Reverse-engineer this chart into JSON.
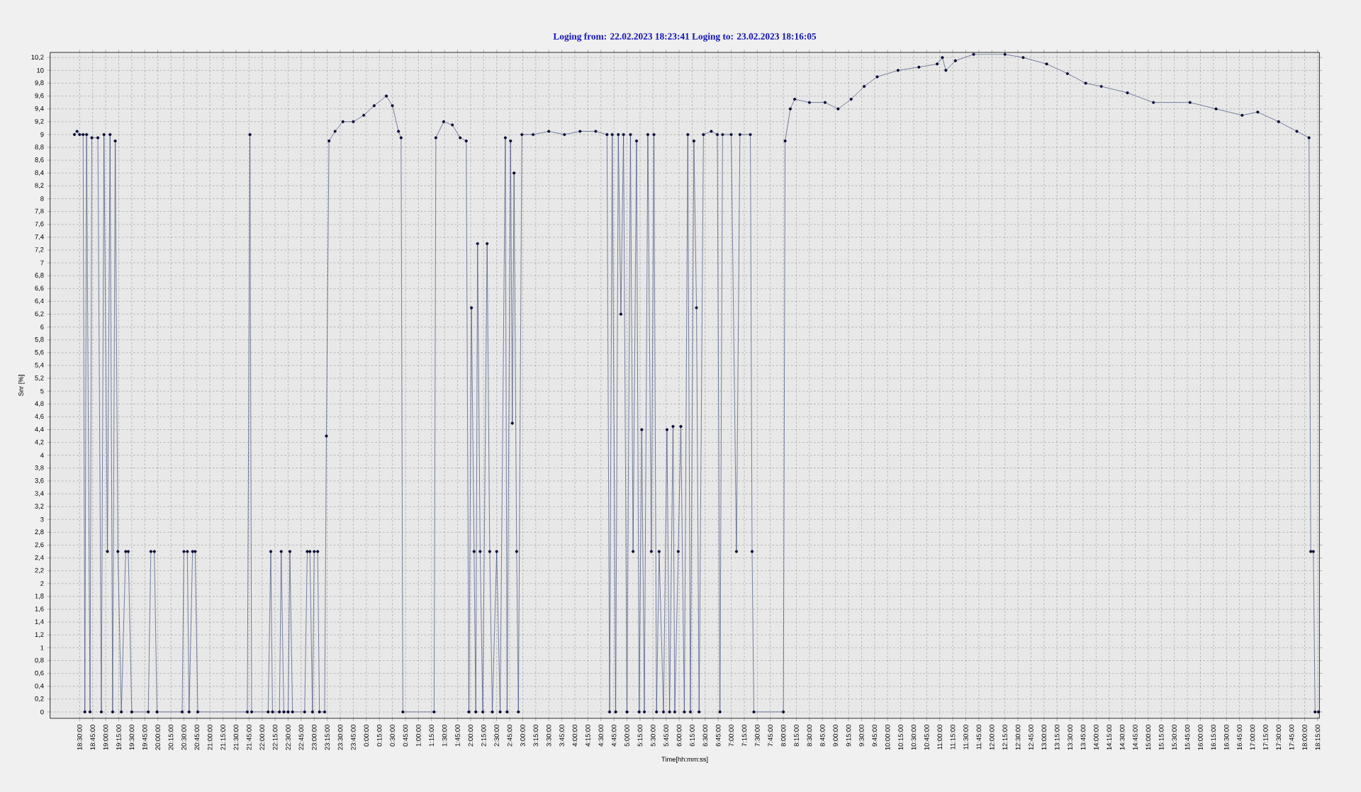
{
  "chart_data": {
    "type": "line",
    "title": "Loging from: 22.02.2023 18:23:41   Loging to: 23.02.2023 18:16:05",
    "xlabel": "Time[hh:mm:ss]",
    "ylabel": "Snr [%]",
    "grid": true,
    "marker": "circle",
    "line_style": "solid",
    "xlim": [
      "2023-02-22T17:56",
      "2023-02-23T18:17"
    ],
    "ylim": [
      -0.1,
      10.28
    ],
    "xticks": [
      {
        "value": "2023-02-22T18:30",
        "label": "18:30:00"
      },
      {
        "value": "2023-02-22T18:45",
        "label": "18:45:00"
      },
      {
        "value": "2023-02-22T19:00",
        "label": "19:00:00"
      },
      {
        "value": "2023-02-22T19:15",
        "label": "19:15:00"
      },
      {
        "value": "2023-02-22T19:30",
        "label": "19:30:00"
      },
      {
        "value": "2023-02-22T19:45",
        "label": "19:45:00"
      },
      {
        "value": "2023-02-22T20:00",
        "label": "20:00:00"
      },
      {
        "value": "2023-02-22T20:15",
        "label": "20:15:00"
      },
      {
        "value": "2023-02-22T20:30",
        "label": "20:30:00"
      },
      {
        "value": "2023-02-22T20:45",
        "label": "20:45:00"
      },
      {
        "value": "2023-02-22T21:00",
        "label": "21:00:00"
      },
      {
        "value": "2023-02-22T21:15",
        "label": "21:15:00"
      },
      {
        "value": "2023-02-22T21:30",
        "label": "21:30:00"
      },
      {
        "value": "2023-02-22T21:45",
        "label": "21:45:00"
      },
      {
        "value": "2023-02-22T22:00",
        "label": "22:00:00"
      },
      {
        "value": "2023-02-22T22:15",
        "label": "22:15:00"
      },
      {
        "value": "2023-02-22T22:30",
        "label": "22:30:00"
      },
      {
        "value": "2023-02-22T22:45",
        "label": "22:45:00"
      },
      {
        "value": "2023-02-22T23:00",
        "label": "23:00:00"
      },
      {
        "value": "2023-02-22T23:15",
        "label": "23:15:00"
      },
      {
        "value": "2023-02-22T23:30",
        "label": "23:30:00"
      },
      {
        "value": "2023-02-22T23:45",
        "label": "23:45:00"
      },
      {
        "value": "2023-02-23T00:00",
        "label": "0:00:00"
      },
      {
        "value": "2023-02-23T00:15",
        "label": "0:15:00"
      },
      {
        "value": "2023-02-23T00:30",
        "label": "0:30:00"
      },
      {
        "value": "2023-02-23T00:45",
        "label": "0:45:00"
      },
      {
        "value": "2023-02-23T01:00",
        "label": "1:00:00"
      },
      {
        "value": "2023-02-23T01:15",
        "label": "1:15:00"
      },
      {
        "value": "2023-02-23T01:30",
        "label": "1:30:00"
      },
      {
        "value": "2023-02-23T01:45",
        "label": "1:45:00"
      },
      {
        "value": "2023-02-23T02:00",
        "label": "2:00:00"
      },
      {
        "value": "2023-02-23T02:15",
        "label": "2:15:00"
      },
      {
        "value": "2023-02-23T02:30",
        "label": "2:30:00"
      },
      {
        "value": "2023-02-23T02:45",
        "label": "2:45:00"
      },
      {
        "value": "2023-02-23T03:00",
        "label": "3:00:00"
      },
      {
        "value": "2023-02-23T03:15",
        "label": "3:15:00"
      },
      {
        "value": "2023-02-23T03:30",
        "label": "3:30:00"
      },
      {
        "value": "2023-02-23T03:45",
        "label": "3:45:00"
      },
      {
        "value": "2023-02-23T04:00",
        "label": "4:00:00"
      },
      {
        "value": "2023-02-23T04:15",
        "label": "4:15:00"
      },
      {
        "value": "2023-02-23T04:30",
        "label": "4:30:00"
      },
      {
        "value": "2023-02-23T04:45",
        "label": "4:45:00"
      },
      {
        "value": "2023-02-23T05:00",
        "label": "5:00:00"
      },
      {
        "value": "2023-02-23T05:15",
        "label": "5:15:00"
      },
      {
        "value": "2023-02-23T05:30",
        "label": "5:30:00"
      },
      {
        "value": "2023-02-23T05:45",
        "label": "5:45:00"
      },
      {
        "value": "2023-02-23T06:00",
        "label": "6:00:00"
      },
      {
        "value": "2023-02-23T06:15",
        "label": "6:15:00"
      },
      {
        "value": "2023-02-23T06:30",
        "label": "6:30:00"
      },
      {
        "value": "2023-02-23T06:45",
        "label": "6:45:00"
      },
      {
        "value": "2023-02-23T07:00",
        "label": "7:00:00"
      },
      {
        "value": "2023-02-23T07:15",
        "label": "7:15:00"
      },
      {
        "value": "2023-02-23T07:30",
        "label": "7:30:00"
      },
      {
        "value": "2023-02-23T07:45",
        "label": "7:45:00"
      },
      {
        "value": "2023-02-23T08:00",
        "label": "8:00:00"
      },
      {
        "value": "2023-02-23T08:15",
        "label": "8:15:00"
      },
      {
        "value": "2023-02-23T08:30",
        "label": "8:30:00"
      },
      {
        "value": "2023-02-23T08:45",
        "label": "8:45:00"
      },
      {
        "value": "2023-02-23T09:00",
        "label": "9:00:00"
      },
      {
        "value": "2023-02-23T09:15",
        "label": "9:15:00"
      },
      {
        "value": "2023-02-23T09:30",
        "label": "9:30:00"
      },
      {
        "value": "2023-02-23T09:45",
        "label": "9:45:00"
      },
      {
        "value": "2023-02-23T10:00",
        "label": "10:00:00"
      },
      {
        "value": "2023-02-23T10:15",
        "label": "10:15:00"
      },
      {
        "value": "2023-02-23T10:30",
        "label": "10:30:00"
      },
      {
        "value": "2023-02-23T10:45",
        "label": "10:45:00"
      },
      {
        "value": "2023-02-23T11:00",
        "label": "11:00:00"
      },
      {
        "value": "2023-02-23T11:15",
        "label": "11:15:00"
      },
      {
        "value": "2023-02-23T11:30",
        "label": "11:30:00"
      },
      {
        "value": "2023-02-23T11:45",
        "label": "11:45:00"
      },
      {
        "value": "2023-02-23T12:00",
        "label": "12:00:00"
      },
      {
        "value": "2023-02-23T12:15",
        "label": "12:15:00"
      },
      {
        "value": "2023-02-23T12:30",
        "label": "12:30:00"
      },
      {
        "value": "2023-02-23T12:45",
        "label": "12:45:00"
      },
      {
        "value": "2023-02-23T13:00",
        "label": "13:00:00"
      },
      {
        "value": "2023-02-23T13:15",
        "label": "13:15:00"
      },
      {
        "value": "2023-02-23T13:30",
        "label": "13:30:00"
      },
      {
        "value": "2023-02-23T13:45",
        "label": "13:45:00"
      },
      {
        "value": "2023-02-23T14:00",
        "label": "14:00:00"
      },
      {
        "value": "2023-02-23T14:15",
        "label": "14:15:00"
      },
      {
        "value": "2023-02-23T14:30",
        "label": "14:30:00"
      },
      {
        "value": "2023-02-23T14:45",
        "label": "14:45:00"
      },
      {
        "value": "2023-02-23T15:00",
        "label": "15:00:00"
      },
      {
        "value": "2023-02-23T15:15",
        "label": "15:15:00"
      },
      {
        "value": "2023-02-23T15:30",
        "label": "15:30:00"
      },
      {
        "value": "2023-02-23T15:45",
        "label": "15:45:00"
      },
      {
        "value": "2023-02-23T16:00",
        "label": "16:00:00"
      },
      {
        "value": "2023-02-23T16:15",
        "label": "16:15:00"
      },
      {
        "value": "2023-02-23T16:30",
        "label": "16:30:00"
      },
      {
        "value": "2023-02-23T16:45",
        "label": "16:45:00"
      },
      {
        "value": "2023-02-23T17:00",
        "label": "17:00:00"
      },
      {
        "value": "2023-02-23T17:15",
        "label": "17:15:00"
      },
      {
        "value": "2023-02-23T17:30",
        "label": "17:30:00"
      },
      {
        "value": "2023-02-23T17:45",
        "label": "17:45:00"
      },
      {
        "value": "2023-02-23T18:00",
        "label": "18:00:00"
      },
      {
        "value": "2023-02-23T18:15",
        "label": "18:15:00"
      }
    ],
    "yticks": [
      0,
      {
        "value": 0.2,
        "label": "0,2"
      },
      {
        "value": 0.4,
        "label": "0,4"
      },
      {
        "value": 0.6,
        "label": "0,6"
      },
      {
        "value": 0.8,
        "label": "0,8"
      },
      1,
      {
        "value": 1.2,
        "label": "1,2"
      },
      {
        "value": 1.4,
        "label": "1,4"
      },
      {
        "value": 1.6,
        "label": "1,6"
      },
      {
        "value": 1.8,
        "label": "1,8"
      },
      2,
      {
        "value": 2.2,
        "label": "2,2"
      },
      {
        "value": 2.4,
        "label": "2,4"
      },
      {
        "value": 2.6,
        "label": "2,6"
      },
      {
        "value": 2.8,
        "label": "2,8"
      },
      3,
      {
        "value": 3.2,
        "label": "3,2"
      },
      {
        "value": 3.4,
        "label": "3,4"
      },
      {
        "value": 3.6,
        "label": "3,6"
      },
      {
        "value": 3.8,
        "label": "3,8"
      },
      4,
      {
        "value": 4.2,
        "label": "4,2"
      },
      {
        "value": 4.4,
        "label": "4,4"
      },
      {
        "value": 4.6,
        "label": "4,6"
      },
      {
        "value": 4.8,
        "label": "4,8"
      },
      5,
      {
        "value": 5.2,
        "label": "5,2"
      },
      {
        "value": 5.4,
        "label": "5,4"
      },
      {
        "value": 5.6,
        "label": "5,6"
      },
      {
        "value": 5.8,
        "label": "5,8"
      },
      6,
      {
        "value": 6.2,
        "label": "6,2"
      },
      {
        "value": 6.4,
        "label": "6,4"
      },
      {
        "value": 6.6,
        "label": "6,6"
      },
      {
        "value": 6.8,
        "label": "6,8"
      },
      7,
      {
        "value": 7.2,
        "label": "7,2"
      },
      {
        "value": 7.4,
        "label": "7,4"
      },
      {
        "value": 7.6,
        "label": "7,6"
      },
      {
        "value": 7.8,
        "label": "7,8"
      },
      8,
      {
        "value": 8.2,
        "label": "8,2"
      },
      {
        "value": 8.4,
        "label": "8,4"
      },
      {
        "value": 8.6,
        "label": "8,6"
      },
      {
        "value": 8.8,
        "label": "8,8"
      },
      9,
      {
        "value": 9.2,
        "label": "9,2"
      },
      {
        "value": 9.4,
        "label": "9,4"
      },
      {
        "value": 9.6,
        "label": "9,6"
      },
      {
        "value": 9.8,
        "label": "9,8"
      },
      10,
      {
        "value": 10.2,
        "label": "10,2"
      }
    ],
    "series": [
      {
        "color": "#3a4878",
        "x": [
          "2023-02-22T18:24",
          "2023-02-22T18:27",
          "2023-02-22T18:30",
          "2023-02-22T18:34",
          "2023-02-22T18:36",
          "2023-02-22T18:38",
          "2023-02-22T18:42",
          "2023-02-22T18:44",
          "2023-02-22T18:51",
          "2023-02-22T18:55",
          "2023-02-22T18:58",
          "2023-02-22T19:02",
          "2023-02-22T19:05",
          "2023-02-22T19:08",
          "2023-02-22T19:11",
          "2023-02-22T19:14",
          "2023-02-22T19:18",
          "2023-02-22T19:23",
          "2023-02-22T19:26",
          "2023-02-22T19:30",
          "2023-02-22T19:49",
          "2023-02-22T19:52",
          "2023-02-22T19:56",
          "2023-02-22T19:59",
          "2023-02-22T20:28",
          "2023-02-22T20:30",
          "2023-02-22T20:34",
          "2023-02-22T20:36",
          "2023-02-22T20:40",
          "2023-02-22T20:43",
          "2023-02-22T20:46",
          "2023-02-22T21:43",
          "2023-02-22T21:46",
          "2023-02-22T21:48",
          "2023-02-22T22:07",
          "2023-02-22T22:10",
          "2023-02-22T22:12",
          "2023-02-22T22:20",
          "2023-02-22T22:22",
          "2023-02-22T22:25",
          "2023-02-22T22:30",
          "2023-02-22T22:32",
          "2023-02-22T22:35",
          "2023-02-22T22:49",
          "2023-02-22T22:52",
          "2023-02-22T22:55",
          "2023-02-22T22:58",
          "2023-02-22T23:00",
          "2023-02-22T23:04",
          "2023-02-22T23:06",
          "2023-02-22T23:12",
          "2023-02-22T23:14",
          "2023-02-22T23:17",
          "2023-02-22T23:24",
          "2023-02-22T23:33",
          "2023-02-22T23:45",
          "2023-02-22T23:57",
          "2023-02-23T00:09",
          "2023-02-23T00:23",
          "2023-02-23T00:30",
          "2023-02-23T00:37",
          "2023-02-23T00:40",
          "2023-02-23T00:42",
          "2023-02-23T01:18",
          "2023-02-23T01:20",
          "2023-02-23T01:29",
          "2023-02-23T01:39",
          "2023-02-23T01:48",
          "2023-02-23T01:55",
          "2023-02-23T01:58",
          "2023-02-23T02:01",
          "2023-02-23T02:04",
          "2023-02-23T02:06",
          "2023-02-23T02:08",
          "2023-02-23T02:11",
          "2023-02-23T02:14",
          "2023-02-23T02:19",
          "2023-02-23T02:22",
          "2023-02-23T02:25",
          "2023-02-23T02:30",
          "2023-02-23T02:34",
          "2023-02-23T02:40",
          "2023-02-23T02:42",
          "2023-02-23T02:46",
          "2023-02-23T02:48",
          "2023-02-23T02:50",
          "2023-02-23T02:53",
          "2023-02-23T02:55",
          "2023-02-23T02:59",
          "2023-02-23T03:12",
          "2023-02-23T03:30",
          "2023-02-23T03:48",
          "2023-02-23T04:06",
          "2023-02-23T04:24",
          "2023-02-23T04:37",
          "2023-02-23T04:40",
          "2023-02-23T04:43",
          "2023-02-23T04:47",
          "2023-02-23T04:50",
          "2023-02-23T04:53",
          "2023-02-23T04:56",
          "2023-02-23T05:00",
          "2023-02-23T05:04",
          "2023-02-23T05:07",
          "2023-02-23T05:11",
          "2023-02-23T05:14",
          "2023-02-23T05:17",
          "2023-02-23T05:20",
          "2023-02-23T05:24",
          "2023-02-23T05:28",
          "2023-02-23T05:31",
          "2023-02-23T05:34",
          "2023-02-23T05:37",
          "2023-02-23T05:42",
          "2023-02-23T05:46",
          "2023-02-23T05:49",
          "2023-02-23T05:53",
          "2023-02-23T05:55",
          "2023-02-23T05:59",
          "2023-02-23T06:02",
          "2023-02-23T06:06",
          "2023-02-23T06:10",
          "2023-02-23T06:13",
          "2023-02-23T06:17",
          "2023-02-23T06:20",
          "2023-02-23T06:23",
          "2023-02-23T06:28",
          "2023-02-23T06:37",
          "2023-02-23T06:44",
          "2023-02-23T06:47",
          "2023-02-23T06:50",
          "2023-02-23T07:00",
          "2023-02-23T07:06",
          "2023-02-23T07:10",
          "2023-02-23T07:22",
          "2023-02-23T07:24",
          "2023-02-23T07:26",
          "2023-02-23T08:00",
          "2023-02-23T08:02",
          "2023-02-23T08:08",
          "2023-02-23T08:13",
          "2023-02-23T08:30",
          "2023-02-23T08:48",
          "2023-02-23T09:03",
          "2023-02-23T09:18",
          "2023-02-23T09:33",
          "2023-02-23T09:48",
          "2023-02-23T10:12",
          "2023-02-23T10:36",
          "2023-02-23T10:57",
          "2023-02-23T11:03",
          "2023-02-23T11:07",
          "2023-02-23T11:18",
          "2023-02-23T11:39",
          "2023-02-23T12:15",
          "2023-02-23T12:36",
          "2023-02-23T13:03",
          "2023-02-23T13:27",
          "2023-02-23T13:48",
          "2023-02-23T14:06",
          "2023-02-23T14:36",
          "2023-02-23T15:06",
          "2023-02-23T15:48",
          "2023-02-23T16:18",
          "2023-02-23T16:48",
          "2023-02-23T17:06",
          "2023-02-23T17:30",
          "2023-02-23T17:51",
          "2023-02-23T18:05",
          "2023-02-23T18:07",
          "2023-02-23T18:10",
          "2023-02-23T18:12",
          "2023-02-23T18:16"
        ],
        "values": [
          9.0,
          9.05,
          9.0,
          9.0,
          0,
          9.0,
          0,
          8.95,
          8.95,
          0,
          9.0,
          2.5,
          9.0,
          0,
          8.9,
          2.5,
          0,
          2.5,
          2.5,
          0,
          0,
          2.5,
          2.5,
          0,
          0,
          2.5,
          2.5,
          0,
          2.5,
          2.5,
          0,
          0,
          9.0,
          0,
          0,
          2.5,
          0,
          0,
          2.5,
          0,
          0,
          2.5,
          0,
          0,
          2.5,
          2.5,
          0,
          2.5,
          2.5,
          0,
          0,
          4.3,
          8.9,
          9.05,
          9.2,
          9.2,
          9.3,
          9.45,
          9.6,
          9.45,
          9.05,
          8.95,
          0,
          0,
          8.95,
          9.2,
          9.15,
          8.95,
          8.9,
          0,
          6.3,
          2.5,
          0,
          7.3,
          2.5,
          0,
          7.3,
          2.5,
          0,
          2.5,
          0,
          8.95,
          0,
          8.9,
          4.5,
          8.4,
          2.5,
          0,
          9.0,
          9.0,
          9.05,
          9.0,
          9.05,
          9.05,
          9.0,
          0,
          9.0,
          0,
          9.0,
          6.2,
          9.0,
          0,
          9.0,
          2.5,
          8.9,
          0,
          4.4,
          0,
          9.0,
          2.5,
          9.0,
          0,
          2.5,
          0,
          4.4,
          0,
          4.45,
          0,
          2.5,
          4.45,
          0,
          9.0,
          0,
          8.9,
          6.3,
          0,
          9.0,
          9.05,
          9.0,
          0,
          9.0,
          9.0,
          2.5,
          9.0,
          9.0,
          2.5,
          0,
          0,
          8.9,
          9.4,
          9.55,
          9.5,
          9.5,
          9.4,
          9.55,
          9.75,
          9.9,
          10.0,
          10.05,
          10.1,
          10.2,
          10.0,
          10.15,
          10.25,
          10.25,
          10.2,
          10.1,
          9.95,
          9.8,
          9.75,
          9.65,
          9.5,
          9.5,
          9.4,
          9.3,
          9.35,
          9.2,
          9.05,
          8.95,
          2.5,
          2.5,
          0,
          0
        ]
      }
    ]
  }
}
